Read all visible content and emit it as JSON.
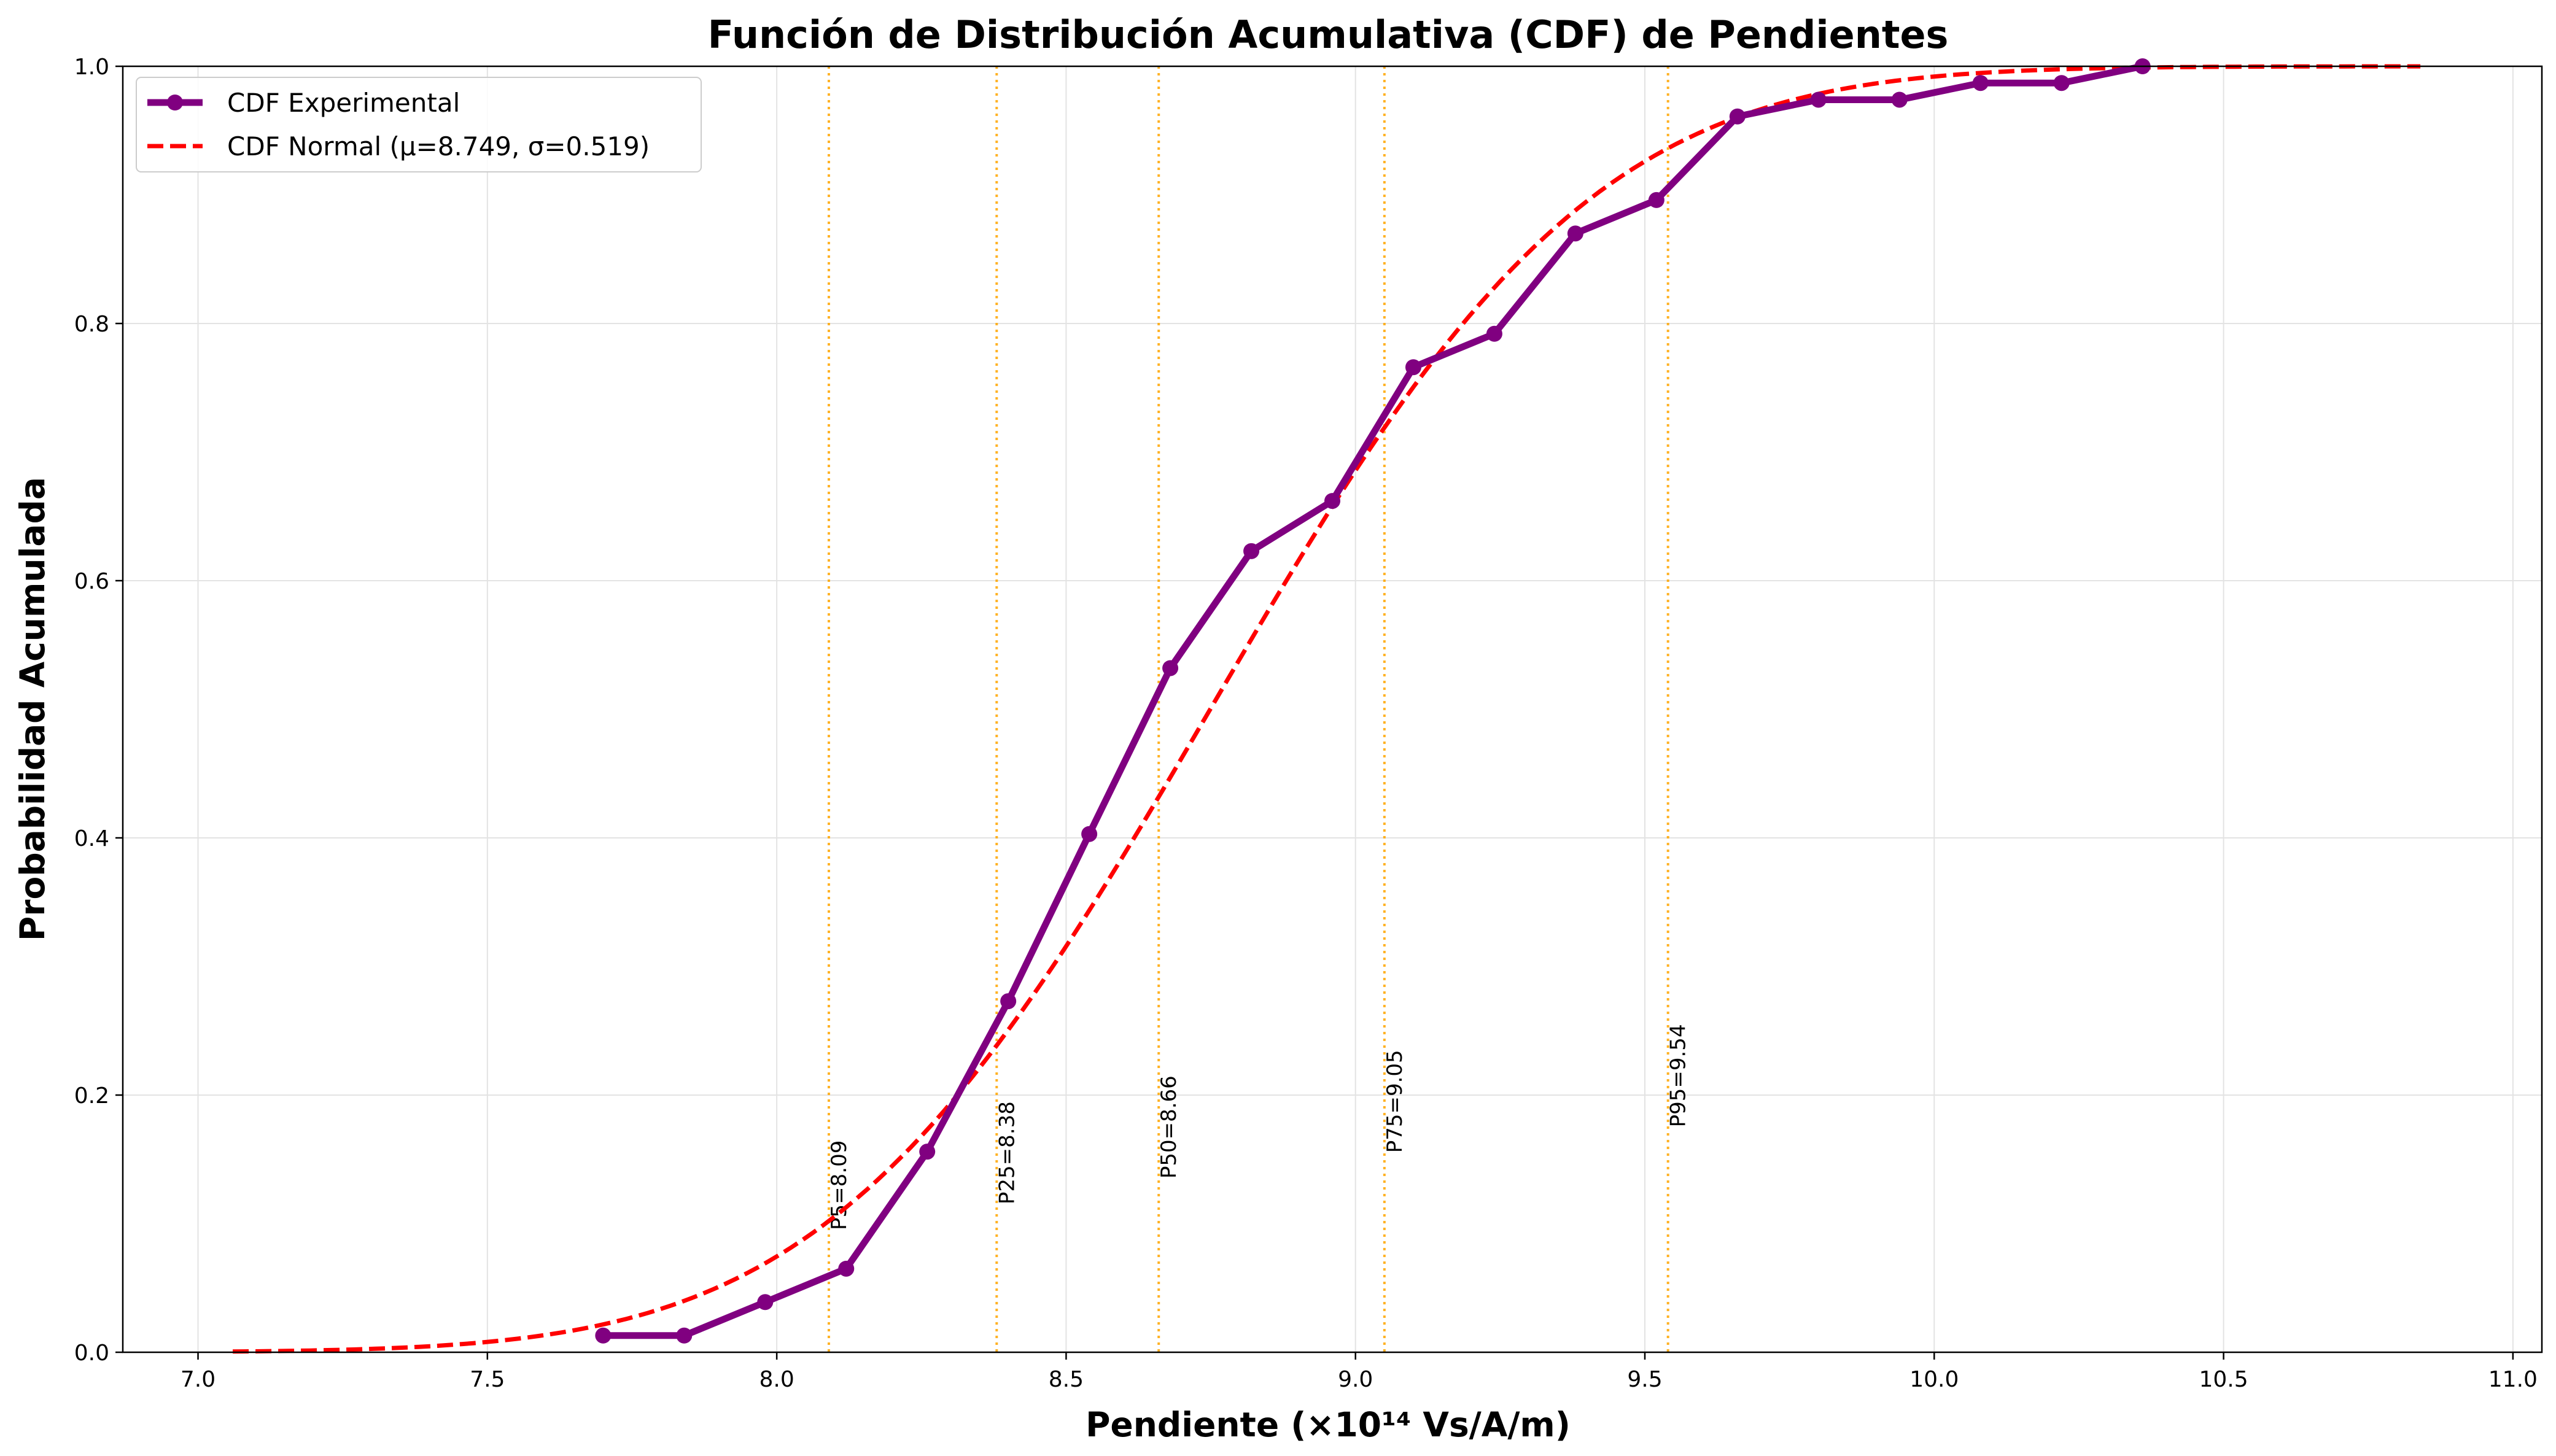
{
  "chart_data": {
    "type": "line",
    "title": "Función de Distribución Acumulativa (CDF) de Pendientes",
    "xlabel": "Pendiente (×10¹⁴ Vs/A/m)",
    "ylabel": "Probabilidad Acumulada",
    "xlim": [
      6.87,
      11.05
    ],
    "ylim": [
      0,
      1
    ],
    "xticks": [
      7.0,
      7.5,
      8.0,
      8.5,
      9.0,
      9.5,
      10.0,
      10.5,
      11.0
    ],
    "xtick_labels": [
      "7.0",
      "7.5",
      "8.0",
      "8.5",
      "9.0",
      "9.5",
      "10.0",
      "10.5",
      "11.0"
    ],
    "yticks": [
      0.0,
      0.2,
      0.4,
      0.6,
      0.8,
      1.0
    ],
    "ytick_labels": [
      "0.0",
      "0.2",
      "0.4",
      "0.6",
      "0.8",
      "1.0"
    ],
    "grid": true,
    "legend_position": "top-left",
    "series": [
      {
        "name": "CDF Experimental",
        "color": "#800080",
        "style": "solid-markers",
        "x": [
          7.7,
          7.84,
          7.98,
          8.12,
          8.26,
          8.4,
          8.54,
          8.68,
          8.82,
          8.96,
          9.1,
          9.24,
          9.38,
          9.52,
          9.66,
          9.8,
          9.94,
          10.08,
          10.22,
          10.36
        ],
        "y": [
          0.013,
          0.013,
          0.039,
          0.065,
          0.156,
          0.273,
          0.403,
          0.532,
          0.623,
          0.662,
          0.766,
          0.792,
          0.87,
          0.896,
          0.961,
          0.974,
          0.974,
          0.987,
          0.987,
          1.0
        ]
      },
      {
        "name": "CDF Normal (μ=8.749, σ=0.519)",
        "color": "#ff0000",
        "style": "dashed",
        "mu": 8.749,
        "sigma": 0.519,
        "x_range": [
          7.06,
          10.84
        ]
      }
    ],
    "percentiles": [
      {
        "label": "P5=8.09",
        "x": 8.09,
        "label_y": 0.095
      },
      {
        "label": "P25=8.38",
        "x": 8.38,
        "label_y": 0.115
      },
      {
        "label": "P50=8.66",
        "x": 8.66,
        "label_y": 0.135
      },
      {
        "label": "P75=9.05",
        "x": 9.05,
        "label_y": 0.155
      },
      {
        "label": "P95=9.54",
        "x": 9.54,
        "label_y": 0.175
      }
    ],
    "percentile_color": "#ffa500"
  }
}
